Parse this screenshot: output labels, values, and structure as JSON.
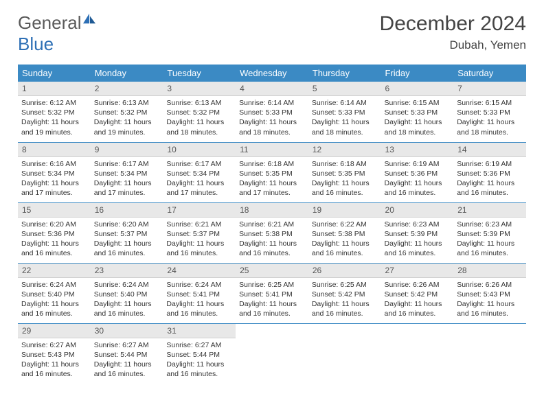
{
  "brand": {
    "part1": "General",
    "part2": "Blue"
  },
  "title": "December 2024",
  "location": "Dubah, Yemen",
  "colors": {
    "header_bg": "#3b8ac4",
    "header_text": "#ffffff",
    "daynum_bg": "#e8e8e8",
    "border": "#3b8ac4",
    "logo_gray": "#5a5a5a",
    "logo_blue": "#2d6fb5"
  },
  "weekdays": [
    "Sunday",
    "Monday",
    "Tuesday",
    "Wednesday",
    "Thursday",
    "Friday",
    "Saturday"
  ],
  "weeks": [
    [
      {
        "n": "1",
        "sr": "6:12 AM",
        "ss": "5:32 PM",
        "dl": "11 hours and 19 minutes."
      },
      {
        "n": "2",
        "sr": "6:13 AM",
        "ss": "5:32 PM",
        "dl": "11 hours and 19 minutes."
      },
      {
        "n": "3",
        "sr": "6:13 AM",
        "ss": "5:32 PM",
        "dl": "11 hours and 18 minutes."
      },
      {
        "n": "4",
        "sr": "6:14 AM",
        "ss": "5:33 PM",
        "dl": "11 hours and 18 minutes."
      },
      {
        "n": "5",
        "sr": "6:14 AM",
        "ss": "5:33 PM",
        "dl": "11 hours and 18 minutes."
      },
      {
        "n": "6",
        "sr": "6:15 AM",
        "ss": "5:33 PM",
        "dl": "11 hours and 18 minutes."
      },
      {
        "n": "7",
        "sr": "6:15 AM",
        "ss": "5:33 PM",
        "dl": "11 hours and 18 minutes."
      }
    ],
    [
      {
        "n": "8",
        "sr": "6:16 AM",
        "ss": "5:34 PM",
        "dl": "11 hours and 17 minutes."
      },
      {
        "n": "9",
        "sr": "6:17 AM",
        "ss": "5:34 PM",
        "dl": "11 hours and 17 minutes."
      },
      {
        "n": "10",
        "sr": "6:17 AM",
        "ss": "5:34 PM",
        "dl": "11 hours and 17 minutes."
      },
      {
        "n": "11",
        "sr": "6:18 AM",
        "ss": "5:35 PM",
        "dl": "11 hours and 17 minutes."
      },
      {
        "n": "12",
        "sr": "6:18 AM",
        "ss": "5:35 PM",
        "dl": "11 hours and 16 minutes."
      },
      {
        "n": "13",
        "sr": "6:19 AM",
        "ss": "5:36 PM",
        "dl": "11 hours and 16 minutes."
      },
      {
        "n": "14",
        "sr": "6:19 AM",
        "ss": "5:36 PM",
        "dl": "11 hours and 16 minutes."
      }
    ],
    [
      {
        "n": "15",
        "sr": "6:20 AM",
        "ss": "5:36 PM",
        "dl": "11 hours and 16 minutes."
      },
      {
        "n": "16",
        "sr": "6:20 AM",
        "ss": "5:37 PM",
        "dl": "11 hours and 16 minutes."
      },
      {
        "n": "17",
        "sr": "6:21 AM",
        "ss": "5:37 PM",
        "dl": "11 hours and 16 minutes."
      },
      {
        "n": "18",
        "sr": "6:21 AM",
        "ss": "5:38 PM",
        "dl": "11 hours and 16 minutes."
      },
      {
        "n": "19",
        "sr": "6:22 AM",
        "ss": "5:38 PM",
        "dl": "11 hours and 16 minutes."
      },
      {
        "n": "20",
        "sr": "6:23 AM",
        "ss": "5:39 PM",
        "dl": "11 hours and 16 minutes."
      },
      {
        "n": "21",
        "sr": "6:23 AM",
        "ss": "5:39 PM",
        "dl": "11 hours and 16 minutes."
      }
    ],
    [
      {
        "n": "22",
        "sr": "6:24 AM",
        "ss": "5:40 PM",
        "dl": "11 hours and 16 minutes."
      },
      {
        "n": "23",
        "sr": "6:24 AM",
        "ss": "5:40 PM",
        "dl": "11 hours and 16 minutes."
      },
      {
        "n": "24",
        "sr": "6:24 AM",
        "ss": "5:41 PM",
        "dl": "11 hours and 16 minutes."
      },
      {
        "n": "25",
        "sr": "6:25 AM",
        "ss": "5:41 PM",
        "dl": "11 hours and 16 minutes."
      },
      {
        "n": "26",
        "sr": "6:25 AM",
        "ss": "5:42 PM",
        "dl": "11 hours and 16 minutes."
      },
      {
        "n": "27",
        "sr": "6:26 AM",
        "ss": "5:42 PM",
        "dl": "11 hours and 16 minutes."
      },
      {
        "n": "28",
        "sr": "6:26 AM",
        "ss": "5:43 PM",
        "dl": "11 hours and 16 minutes."
      }
    ],
    [
      {
        "n": "29",
        "sr": "6:27 AM",
        "ss": "5:43 PM",
        "dl": "11 hours and 16 minutes."
      },
      {
        "n": "30",
        "sr": "6:27 AM",
        "ss": "5:44 PM",
        "dl": "11 hours and 16 minutes."
      },
      {
        "n": "31",
        "sr": "6:27 AM",
        "ss": "5:44 PM",
        "dl": "11 hours and 16 minutes."
      },
      null,
      null,
      null,
      null
    ]
  ],
  "labels": {
    "sunrise": "Sunrise:",
    "sunset": "Sunset:",
    "daylight": "Daylight:"
  }
}
